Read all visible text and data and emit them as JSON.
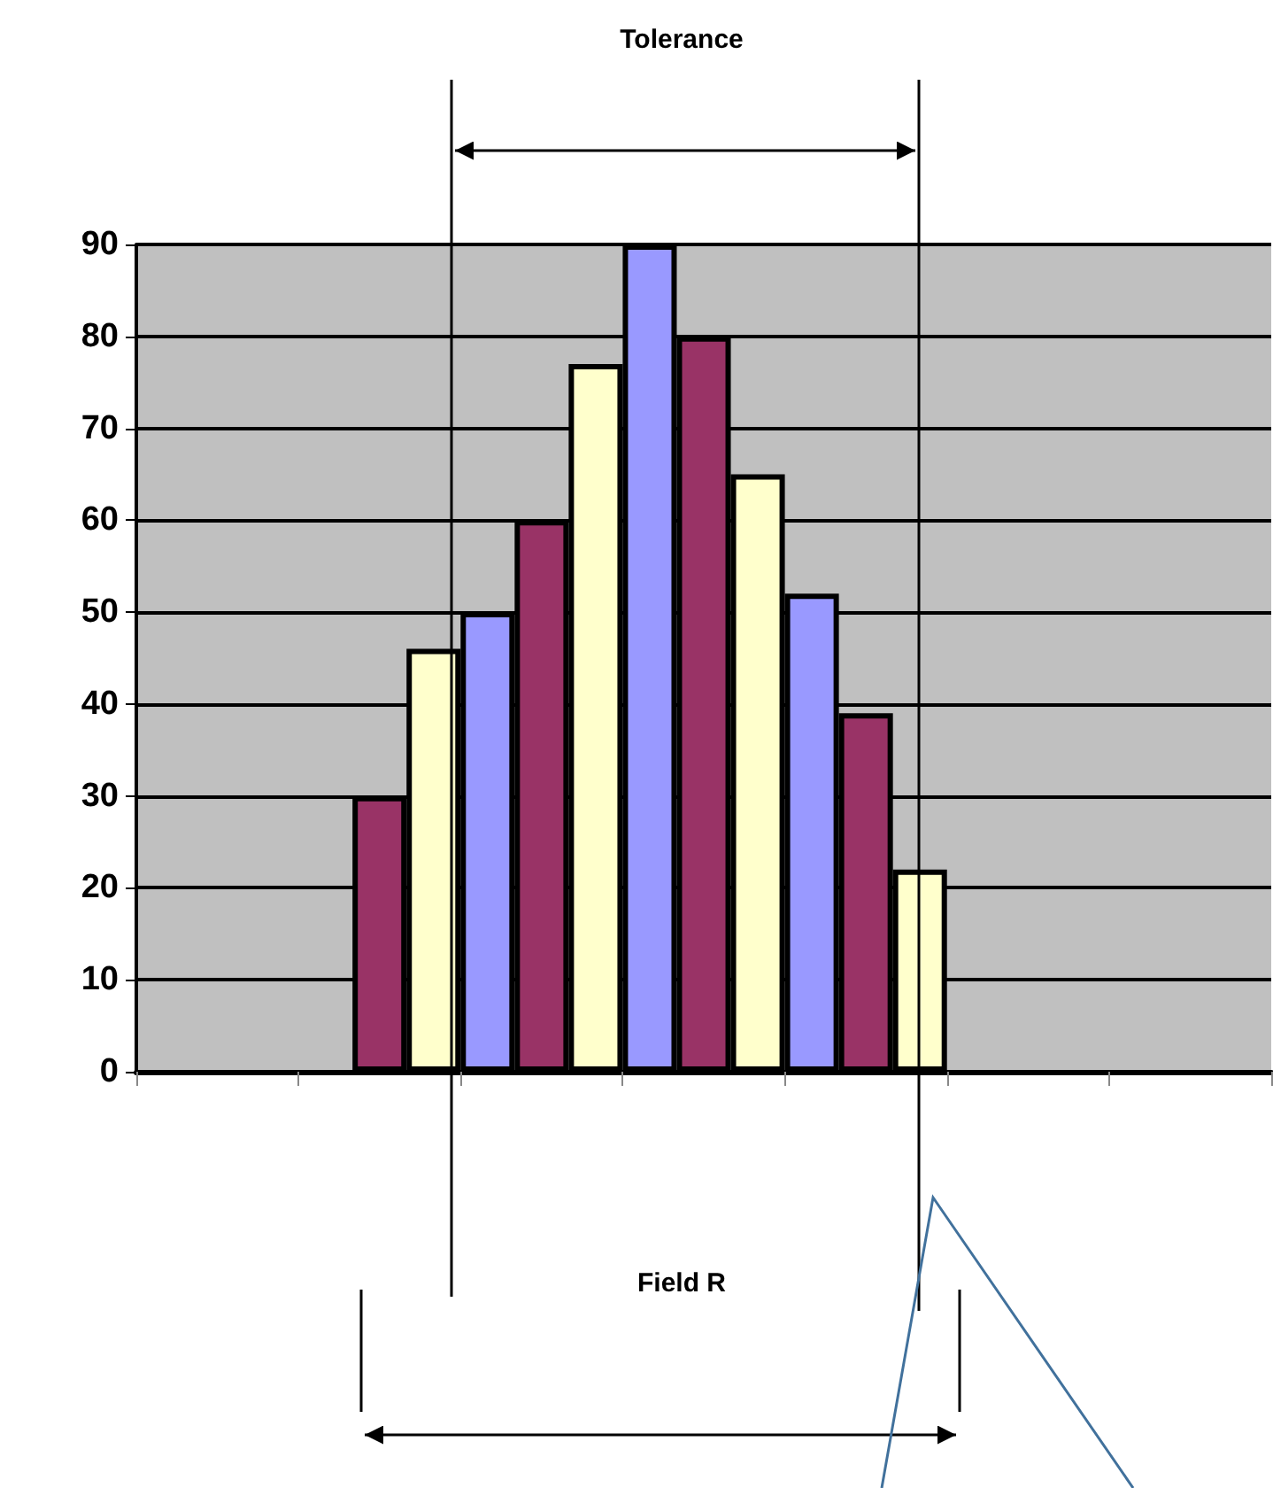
{
  "chart_data": {
    "type": "bar",
    "categories": [
      null,
      null,
      null,
      null,
      null,
      null,
      null
    ],
    "series": [
      {
        "color": "#9999ff",
        "values": [
          null,
          null,
          50,
          90,
          52,
          null,
          null
        ]
      },
      {
        "color": "#993366",
        "values": [
          null,
          30,
          60,
          80,
          39,
          null,
          null
        ]
      },
      {
        "color": "#ffffcc",
        "values": [
          null,
          46,
          77,
          65,
          22,
          null,
          null
        ]
      }
    ],
    "ylim": [
      0,
      90
    ],
    "yticks": [
      0,
      10,
      20,
      30,
      40,
      50,
      60,
      70,
      80,
      90
    ],
    "grid": "y",
    "tick_labels": "y",
    "annotations": [
      "Tolerance",
      "Field R"
    ]
  }
}
